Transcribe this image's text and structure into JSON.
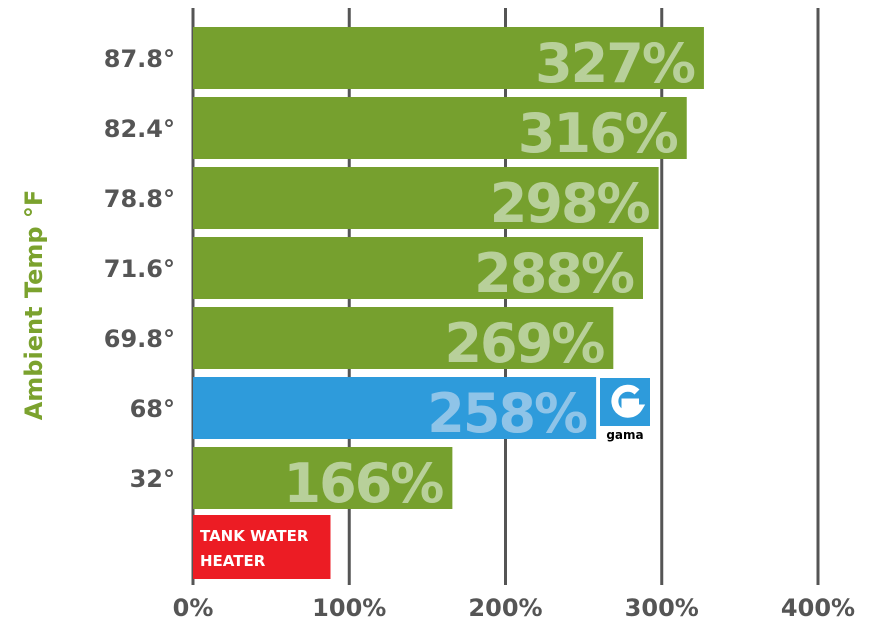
{
  "chart_data": {
    "type": "bar",
    "orientation": "horizontal",
    "ylabel": "Ambient Temp °F",
    "xlabel": "",
    "xlim": [
      0,
      400
    ],
    "x_ticks": [
      "0%",
      "100%",
      "200%",
      "300%",
      "400%"
    ],
    "x_tick_values": [
      0,
      100,
      200,
      300,
      400
    ],
    "grid": "vertical",
    "categories": [
      "87.8°",
      "82.4°",
      "78.8°",
      "71.6°",
      "69.8°",
      "68°",
      "32°"
    ],
    "values": [
      327,
      316,
      298,
      288,
      269,
      258,
      166
    ],
    "value_labels": [
      "327%",
      "316%",
      "298%",
      "288%",
      "269%",
      "258%",
      "166%"
    ],
    "highlight_index": 5,
    "reference_bar": {
      "label_line1": "TANK WATER",
      "label_line2": "HEATER",
      "value": 88
    },
    "logo_text": "gama",
    "colors": {
      "bar": "#76a02e",
      "highlight": "#2e9bdb",
      "reference": "#ec1c24",
      "value_label": "#b8d09a",
      "value_label_highlight": "#8fc4e8",
      "category_label": "#555555",
      "axis_label": "#7ba22e",
      "gridline": "#555555"
    }
  }
}
